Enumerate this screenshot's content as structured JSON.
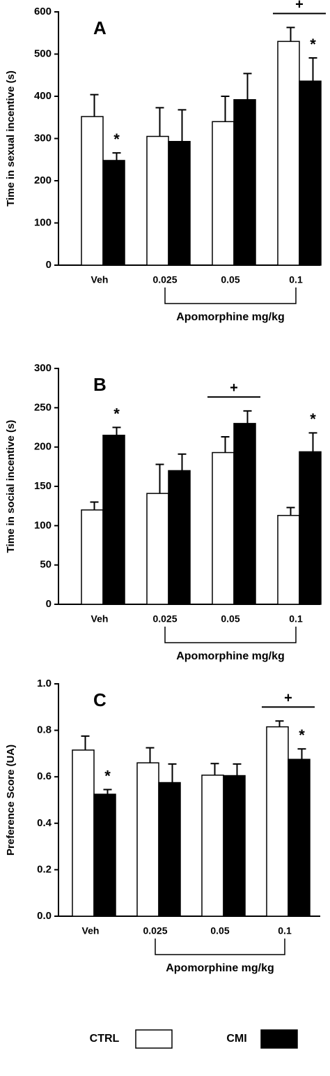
{
  "chart_data": [
    {
      "type": "bar",
      "title": "A",
      "y_label": "Time in sexual incentive (s)",
      "x_label": "Apomorphine mg/kg",
      "categories": [
        "Veh",
        "0.025",
        "0.05",
        "0.1"
      ],
      "series": [
        {
          "name": "CTRL",
          "color": "#ffffff",
          "values": [
            352,
            305,
            340,
            530
          ],
          "errors": [
            52,
            68,
            60,
            33
          ]
        },
        {
          "name": "CMI",
          "color": "#000000",
          "values": [
            248,
            293,
            392,
            436
          ],
          "errors": [
            18,
            75,
            62,
            55
          ]
        }
      ],
      "ylim": [
        0,
        600
      ],
      "yticks": [
        0,
        100,
        200,
        300,
        400,
        500,
        600
      ],
      "annotations": [
        {
          "text": "*",
          "category": 0,
          "series": 1
        },
        {
          "text": "*",
          "category": 3,
          "series": 1
        },
        {
          "text": "+",
          "category": 3
        }
      ]
    },
    {
      "type": "bar",
      "title": "B",
      "y_label": "Time in social incentive (s)",
      "x_label": "Apomorphine mg/kg",
      "categories": [
        "Veh",
        "0.025",
        "0.05",
        "0.1"
      ],
      "series": [
        {
          "color": "#ffffff",
          "values": [
            120,
            141,
            193,
            113
          ],
          "errors": [
            10,
            37,
            20,
            10
          ]
        },
        {
          "color": "#000000",
          "values": [
            215,
            170,
            230,
            194
          ],
          "errors": [
            10,
            21,
            16,
            24
          ]
        }
      ],
      "ylim": [
        0,
        300
      ],
      "yticks": [
        0,
        50,
        100,
        150,
        200,
        250,
        300
      ],
      "annotations": [
        {
          "text": "*",
          "category": 0,
          "series": 1
        },
        {
          "text": "*",
          "category": 3,
          "series": 1
        },
        {
          "text": "+",
          "category": 2
        }
      ]
    },
    {
      "type": "bar",
      "title": "C",
      "y_label": "Preference Score (UA)",
      "x_label": "Apomorphine mg/kg",
      "categories": [
        "Veh",
        "0.025",
        "0.05",
        "0.1"
      ],
      "series": [
        {
          "color": "#ffffff",
          "values": [
            0.715,
            0.66,
            0.607,
            0.815
          ],
          "errors": [
            0.06,
            0.065,
            0.05,
            0.025
          ]
        },
        {
          "color": "#000000",
          "values": [
            0.525,
            0.575,
            0.605,
            0.675
          ],
          "errors": [
            0.02,
            0.08,
            0.05,
            0.045
          ]
        }
      ],
      "ylim": [
        0,
        1
      ],
      "yticks": [
        {
          "value": 0,
          "label": "0.0"
        },
        0.2,
        0.4,
        0.6,
        0.8,
        {
          "value": 1,
          "label": "1.0"
        }
      ],
      "annotations": [
        {
          "text": "*",
          "category": 0,
          "series": 1
        },
        {
          "text": "*",
          "category": 3,
          "series": 1
        },
        {
          "text": "+",
          "category": 3
        }
      ]
    }
  ]
}
